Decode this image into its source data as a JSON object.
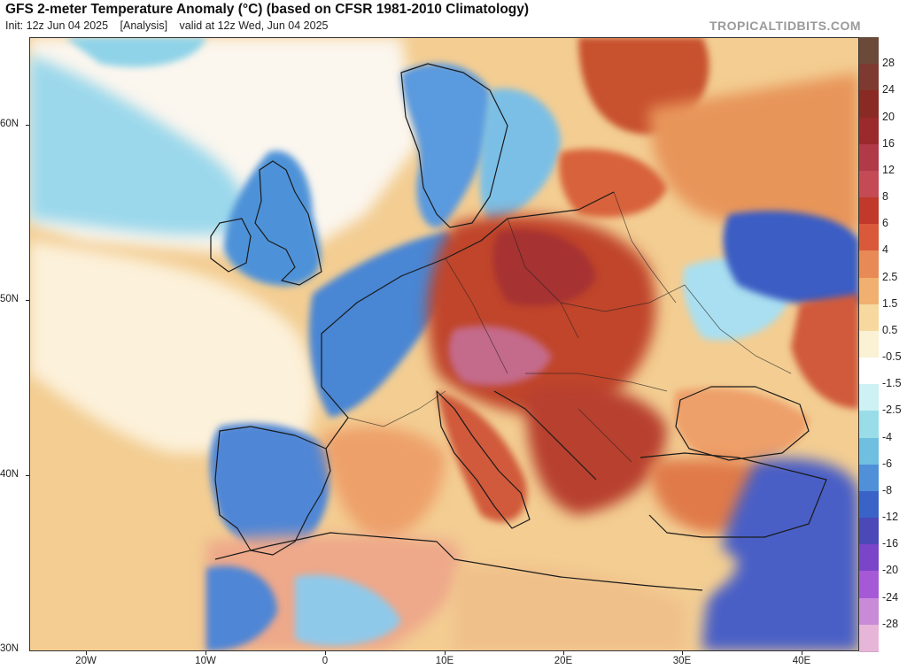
{
  "header": {
    "title": "GFS 2-meter Temperature Anomaly (°C) (based on CFSR 1981-2010 Climatology)",
    "init": "Init: 12z Jun 04 2025",
    "analysis": "[Analysis]",
    "valid": "valid at 12z Wed, Jun 04 2025",
    "brand": "TROPICALTIDBITS.COM"
  },
  "axes": {
    "lat_labels": [
      "60N",
      "50N",
      "40N",
      "30N"
    ],
    "lon_labels": [
      "20W",
      "10W",
      "0",
      "10E",
      "20E",
      "30E",
      "40E"
    ]
  },
  "colorbar": {
    "labels": [
      "28",
      "24",
      "20",
      "16",
      "12",
      "8",
      "6",
      "4",
      "2.5",
      "1.5",
      "0.5",
      "-0.5",
      "-1.5",
      "-2.5",
      "-4",
      "-6",
      "-8",
      "-12",
      "-16",
      "-20",
      "-24",
      "-28"
    ],
    "colors": [
      "#6b4a3a",
      "#7e3a30",
      "#8a2a24",
      "#9a2a2c",
      "#b03a48",
      "#c44a55",
      "#c0392b",
      "#d9593a",
      "#e88a55",
      "#f0b070",
      "#f7d9a0",
      "#fbf1d4",
      "#ffffff",
      "#cdf1f4",
      "#99dde8",
      "#6fbfe0",
      "#4f90d8",
      "#3a63c8",
      "#4b48b8",
      "#7a45c8",
      "#a659d6",
      "#c98bd8",
      "#e7b5d8"
    ]
  },
  "map_colors": {
    "ocean_warm": "#f3cd92",
    "ocean_white": "#fcf6ec",
    "cold_light": "#8fd3e8",
    "cold_mid": "#4d92d8",
    "cold_deep": "#3b5dc4",
    "warm_mid": "#e8955a",
    "warm_red": "#c0442c",
    "hot_dark": "#9a2a24",
    "hot_purple": "#c46a8a",
    "border": "#1a1a1a"
  }
}
